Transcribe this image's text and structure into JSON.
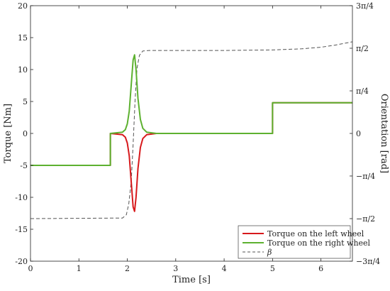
{
  "chart_data": {
    "type": "line",
    "xlabel": "Time [s]",
    "ylabel": "Torque [Nm]",
    "y2label": "Orientation [rad]",
    "xlim": [
      0,
      6.65
    ],
    "ylim": [
      -20,
      20
    ],
    "y2lim": [
      -2.356,
      2.356
    ],
    "grid": false,
    "legend_position": "bottom-right",
    "xticks": [
      0,
      1,
      2,
      3,
      4,
      5,
      6
    ],
    "yticks": [
      -20,
      -15,
      -10,
      -5,
      0,
      5,
      10,
      15,
      20
    ],
    "y2ticks": [
      {
        "value": 2.356,
        "label": "3π/4"
      },
      {
        "value": 1.571,
        "label": "π/2"
      },
      {
        "value": 0.785,
        "label": "π/4"
      },
      {
        "value": 0,
        "label": "0"
      },
      {
        "value": -0.785,
        "label": "−π/4"
      },
      {
        "value": -1.571,
        "label": "−π/2"
      },
      {
        "value": -2.356,
        "label": "−3π/4"
      }
    ],
    "series": [
      {
        "name": "Torque on the left wheel",
        "color": "#d7191c",
        "axis": "left",
        "style": "solid",
        "x": [
          0,
          1.65,
          1.65,
          1.9,
          1.96,
          2.0,
          2.04,
          2.08,
          2.12,
          2.15,
          2.18,
          2.22,
          2.27,
          2.32,
          2.4,
          2.6,
          5.0,
          5.0,
          6.65
        ],
        "y": [
          -5,
          -5,
          0,
          -0.2,
          -0.6,
          -1.5,
          -3.5,
          -7.5,
          -11.5,
          -12.2,
          -10,
          -5.5,
          -2.2,
          -0.8,
          -0.2,
          0,
          0,
          4.8,
          4.8
        ]
      },
      {
        "name": "Torque on the right wheel",
        "color": "#5db130",
        "axis": "left",
        "style": "solid",
        "x": [
          0,
          1.65,
          1.65,
          1.9,
          1.96,
          2.0,
          2.04,
          2.08,
          2.12,
          2.15,
          2.18,
          2.22,
          2.27,
          2.32,
          2.4,
          2.6,
          5.0,
          5.0,
          6.65
        ],
        "y": [
          -5,
          -5,
          0,
          0.2,
          0.6,
          1.5,
          3.5,
          7.5,
          11.5,
          12.3,
          10,
          5.5,
          2.2,
          0.8,
          0.2,
          0,
          0,
          4.8,
          4.8
        ]
      },
      {
        "name": "β",
        "color": "#555555",
        "axis": "right",
        "style": "dashed",
        "x": [
          0,
          1.9,
          1.98,
          2.03,
          2.08,
          2.12,
          2.16,
          2.2,
          2.25,
          2.32,
          2.45,
          4.0,
          5.0,
          5.6,
          6.0,
          6.3,
          6.65
        ],
        "y": [
          -1.571,
          -1.56,
          -1.5,
          -1.3,
          -0.9,
          -0.2,
          0.6,
          1.2,
          1.44,
          1.52,
          1.53,
          1.53,
          1.54,
          1.56,
          1.59,
          1.63,
          1.69
        ]
      }
    ]
  }
}
